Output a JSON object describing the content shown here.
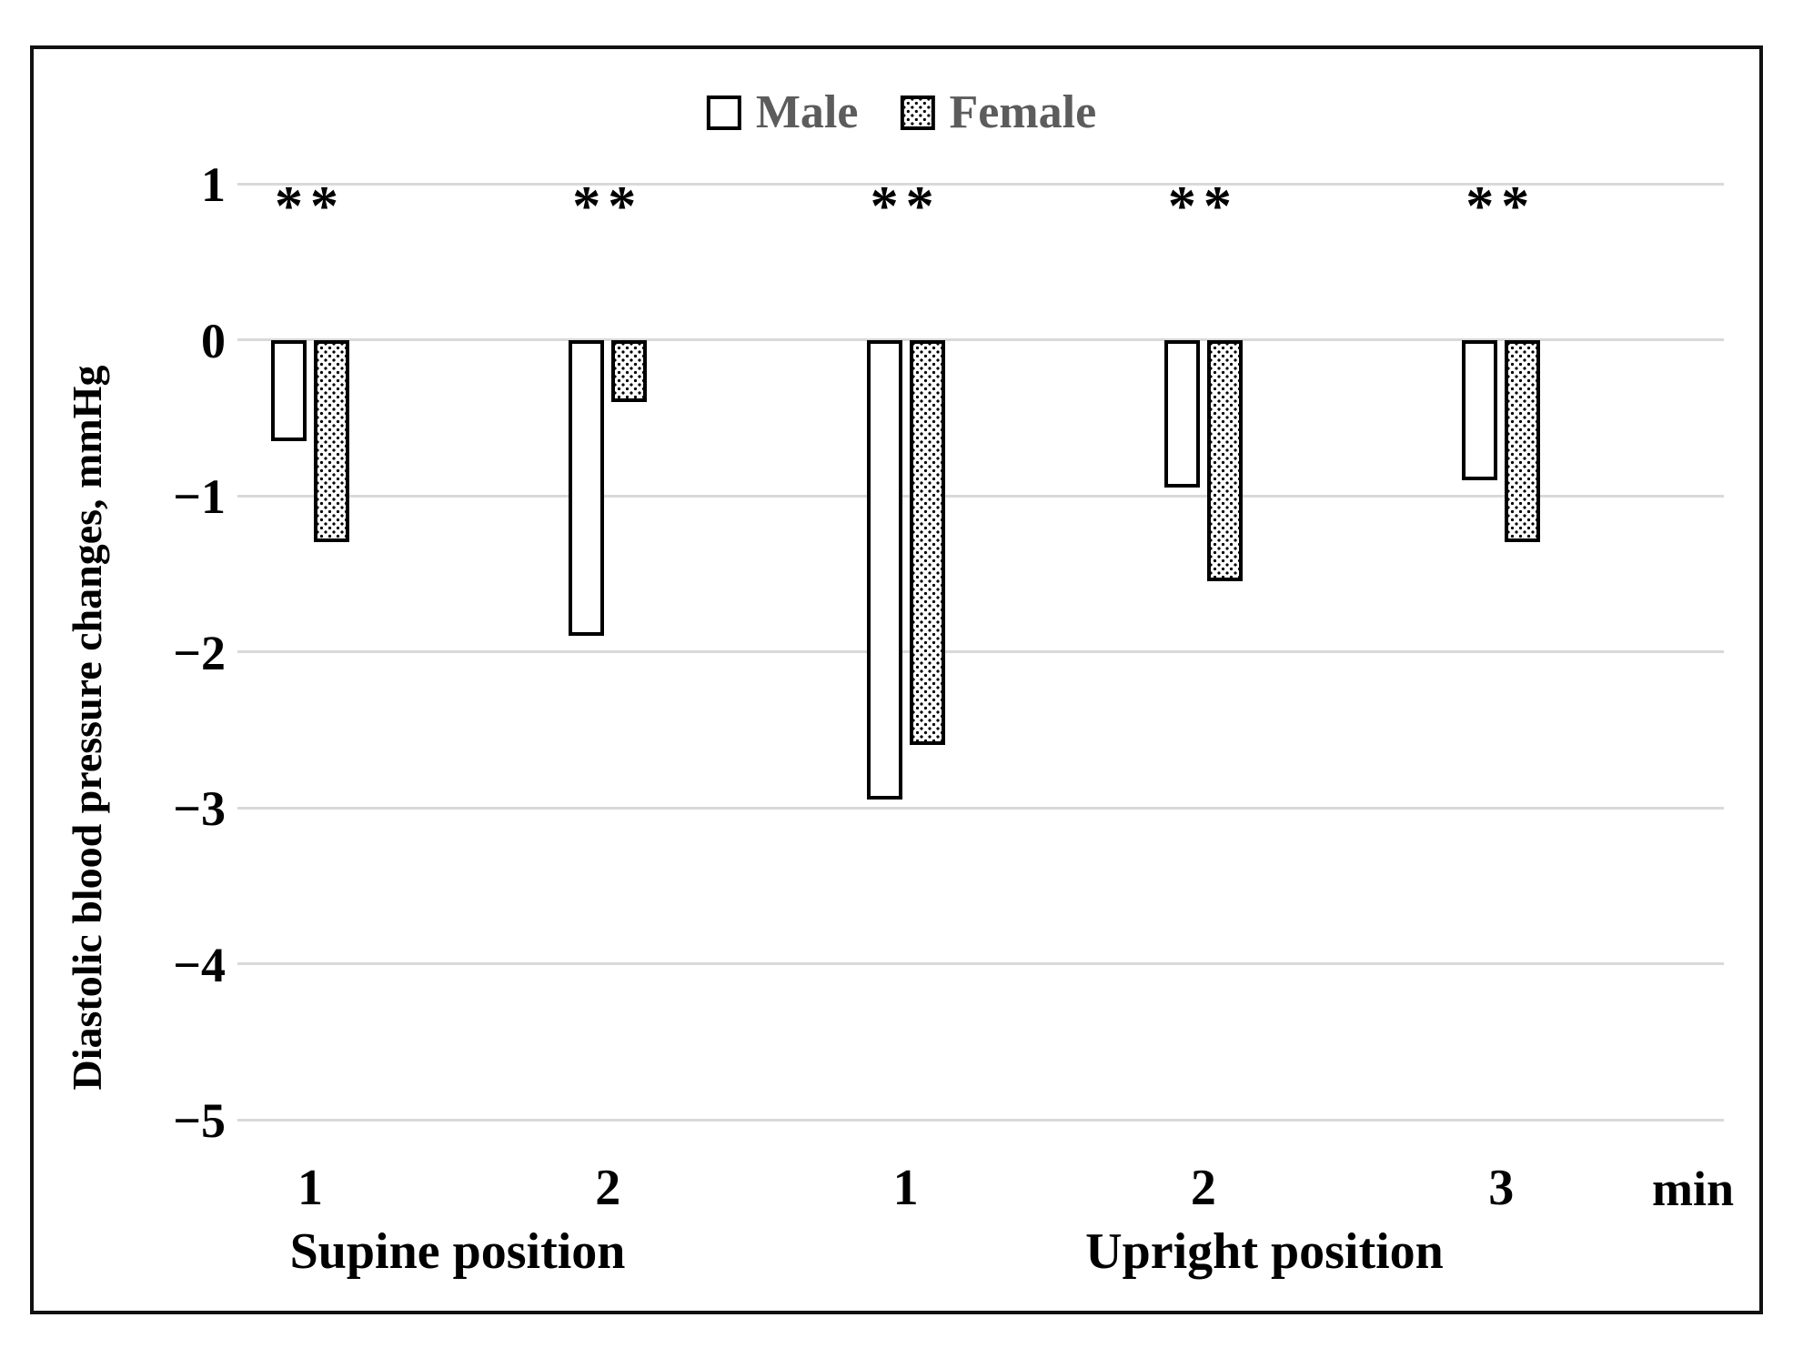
{
  "chart_data": {
    "type": "bar",
    "title": "",
    "ylabel": "Diastolic blood pressure changes, mmHg",
    "axis_unit": "min",
    "categories": [
      "1",
      "2",
      "1",
      "2",
      "3"
    ],
    "group_labels": [
      {
        "label": "Supine position"
      },
      {
        "label": "Upright position"
      }
    ],
    "series": [
      {
        "name": "Male",
        "pattern": "plain",
        "values": [
          -0.65,
          -1.9,
          -2.95,
          -0.95,
          -0.9
        ]
      },
      {
        "name": "Female",
        "pattern": "dotted",
        "values": [
          -1.3,
          -0.4,
          -2.6,
          -1.55,
          -1.3
        ]
      }
    ],
    "annotations": [
      "**",
      "**",
      "**",
      "**",
      "**"
    ],
    "yticks": [
      {
        "value": 1,
        "label": "1"
      },
      {
        "value": 0,
        "label": "0"
      },
      {
        "value": -1,
        "label": "−1"
      },
      {
        "value": -2,
        "label": "−2"
      },
      {
        "value": -3,
        "label": "−3"
      },
      {
        "value": -4,
        "label": "−4"
      },
      {
        "value": -5,
        "label": "−5"
      }
    ],
    "ylim": [
      -5,
      1
    ],
    "grid": "horizontal",
    "legend_position": "top-center"
  },
  "legend": {
    "items": [
      {
        "label": "Male"
      },
      {
        "label": "Female"
      }
    ]
  },
  "colors": {
    "background": "#ffffff",
    "frame_border": "#111111",
    "gridline": "#d9d9d9",
    "bar_outline": "#000000",
    "legend_text": "#5c5c5c",
    "axis_text": "#000000"
  }
}
